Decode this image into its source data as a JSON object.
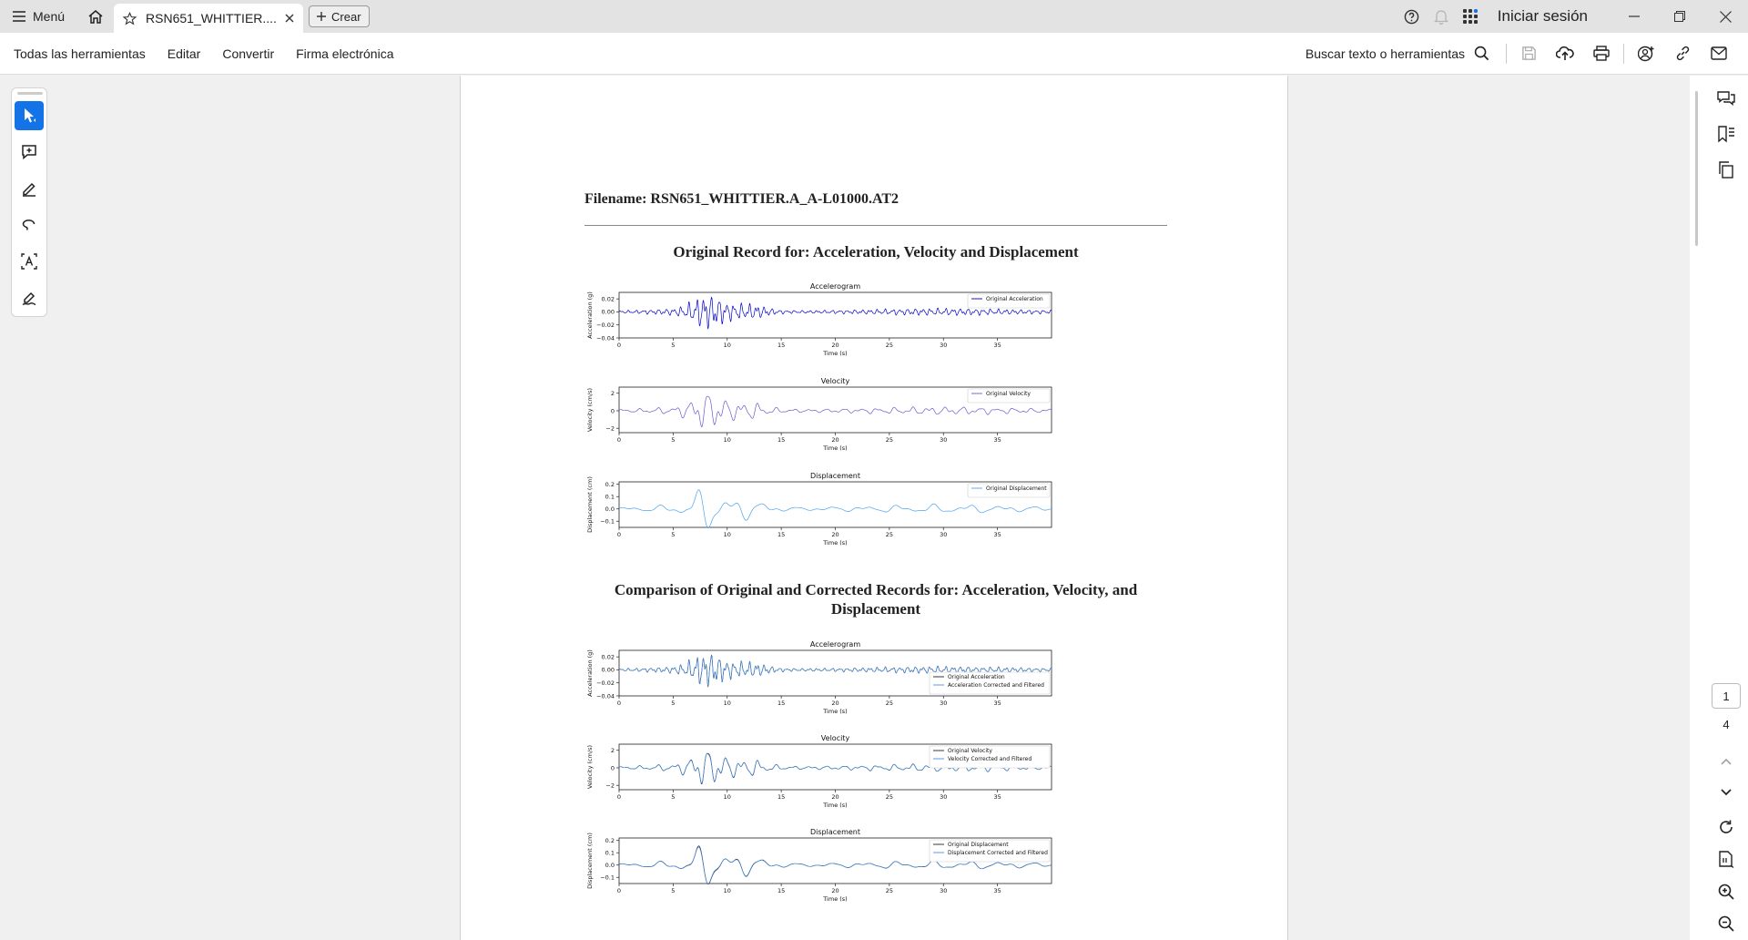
{
  "tabbar": {
    "menu_label": "Menú",
    "tab_title": "RSN651_WHITTIER....",
    "create_label": "Crear",
    "signin_label": "Iniciar sesión"
  },
  "toolbar": {
    "items": [
      "Todas las herramientas",
      "Editar",
      "Convertir",
      "Firma electrónica"
    ],
    "search_label": "Buscar texto o herramientas"
  },
  "document": {
    "filename": "Filename: RSN651_WHITTIER.A_A-L01000.AT2",
    "section1_title": "Original Record for: Acceleration, Velocity and Displacement",
    "section2_title_line1": "Comparison of Original and Corrected Records for: Acceleration, Velocity, and",
    "section2_title_line2": "Displacement"
  },
  "chart_data": [
    {
      "type": "line",
      "title": "Accelerogram",
      "xlabel": "Time (s)",
      "ylabel": "Acceleration (g)",
      "xlim": [
        0,
        40
      ],
      "ylim": [
        -0.04,
        0.03
      ],
      "xticks": [
        0,
        5,
        10,
        15,
        20,
        25,
        30,
        35
      ],
      "yticks": [
        0.02,
        0.0,
        -0.02,
        -0.04
      ],
      "ytick_labels": [
        "0.02",
        "0.00",
        "−0.02",
        "−0.04"
      ],
      "series": [
        {
          "name": "Original Acceleration",
          "color": "#0000cc",
          "peak": 0.03
        }
      ],
      "legend": "top-right"
    },
    {
      "type": "line",
      "title": "Velocity",
      "xlabel": "Time (s)",
      "ylabel": "Velocity (cm/s)",
      "xlim": [
        0,
        40
      ],
      "ylim": [
        -2.5,
        2.7
      ],
      "xticks": [
        0,
        5,
        10,
        15,
        20,
        25,
        30,
        35
      ],
      "yticks": [
        2,
        0,
        -2
      ],
      "ytick_labels": [
        "2",
        "0",
        "−2"
      ],
      "series": [
        {
          "name": "Original Velocity",
          "color": "#6a5acd",
          "peak": 2.5
        }
      ],
      "legend": "top-right"
    },
    {
      "type": "line",
      "title": "Displacement",
      "xlabel": "Time (s)",
      "ylabel": "Displacement (cm)",
      "xlim": [
        0,
        40
      ],
      "ylim": [
        -0.15,
        0.22
      ],
      "xticks": [
        0,
        5,
        10,
        15,
        20,
        25,
        30,
        35
      ],
      "yticks": [
        0.2,
        0.1,
        0.0,
        -0.1
      ],
      "ytick_labels": [
        "0.2",
        "0.1",
        "0.0",
        "−0.1"
      ],
      "series": [
        {
          "name": "Original Displacement",
          "color": "#4aa3f0",
          "peak": 0.2
        }
      ],
      "legend": "top-right"
    },
    {
      "type": "line",
      "title": "Accelerogram",
      "xlabel": "Time (s)",
      "ylabel": "Acceleration (g)",
      "xlim": [
        0,
        40
      ],
      "ylim": [
        -0.04,
        0.03
      ],
      "xticks": [
        0,
        5,
        10,
        15,
        20,
        25,
        30,
        35
      ],
      "yticks": [
        0.02,
        0.0,
        -0.02,
        -0.04
      ],
      "ytick_labels": [
        "0.02",
        "0.00",
        "−0.02",
        "−0.04"
      ],
      "series": [
        {
          "name": "Original Acceleration",
          "color": "#222222",
          "peak": 0.03
        },
        {
          "name": "Acceleration Corrected and Filtered",
          "color": "#4a90e2",
          "peak": 0.03
        }
      ],
      "legend": "bottom-right"
    },
    {
      "type": "line",
      "title": "Velocity",
      "xlabel": "Time (s)",
      "ylabel": "Velocity (cm/s)",
      "xlim": [
        0,
        40
      ],
      "ylim": [
        -2.5,
        2.7
      ],
      "xticks": [
        0,
        5,
        10,
        15,
        20,
        25,
        30,
        35
      ],
      "yticks": [
        2,
        0,
        -2
      ],
      "ytick_labels": [
        "2",
        "0",
        "−2"
      ],
      "series": [
        {
          "name": "Original Velocity",
          "color": "#222222",
          "peak": 2.5
        },
        {
          "name": "Velocity Corrected and Filtered",
          "color": "#4a90e2",
          "peak": 2.5
        }
      ],
      "legend": "top-right"
    },
    {
      "type": "line",
      "title": "Displacement",
      "xlabel": "Time (s)",
      "ylabel": "Displacement (cm)",
      "xlim": [
        0,
        40
      ],
      "ylim": [
        -0.15,
        0.22
      ],
      "xticks": [
        0,
        5,
        10,
        15,
        20,
        25,
        30,
        35
      ],
      "yticks": [
        0.2,
        0.1,
        0.0,
        -0.1
      ],
      "ytick_labels": [
        "0.2",
        "0.1",
        "0.0",
        "−0.1"
      ],
      "series": [
        {
          "name": "Original Displacement",
          "color": "#222222",
          "peak": 0.2
        },
        {
          "name": "Displacement Corrected and Filtered",
          "color": "#4a90e2",
          "peak": 0.2
        }
      ],
      "legend": "top-right"
    }
  ],
  "pagination": {
    "current_page": "1",
    "total_pages": "4"
  },
  "colors": {
    "accent": "#1473e6",
    "notification_dot": "#1473e6"
  }
}
